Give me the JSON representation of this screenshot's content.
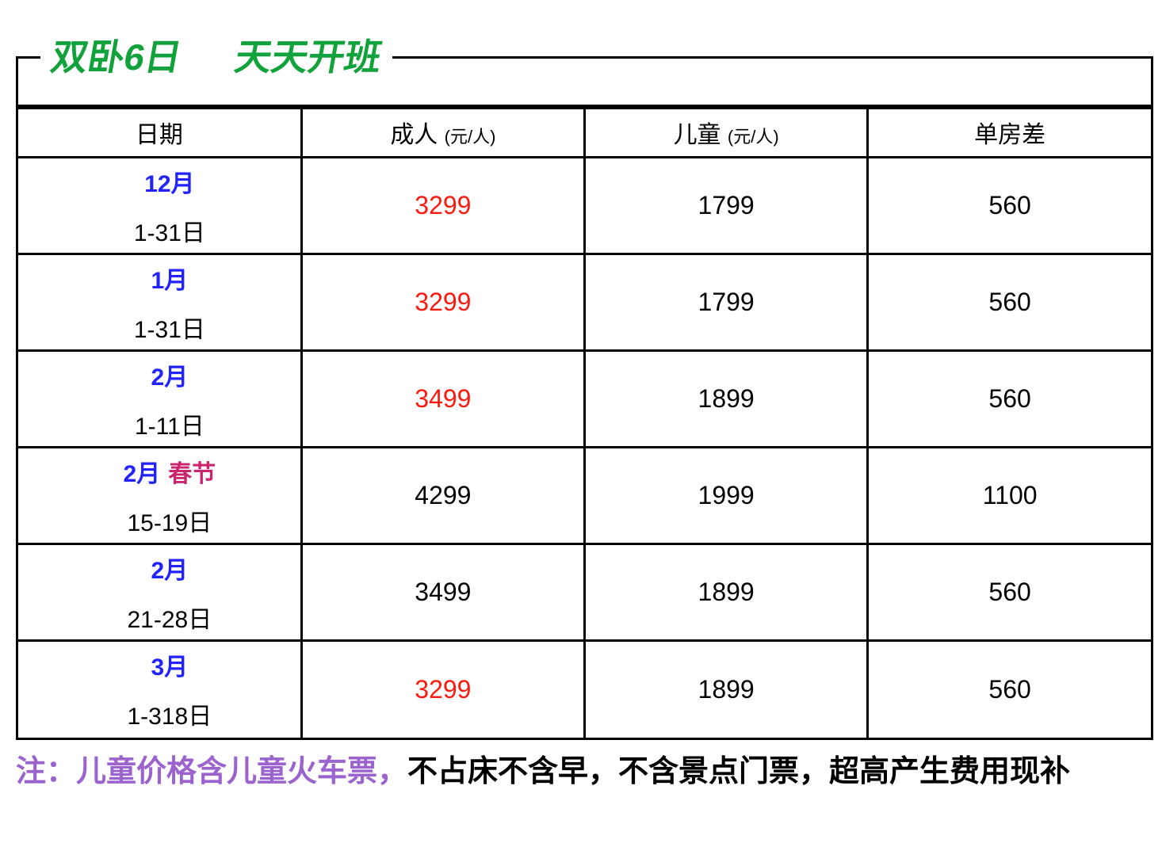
{
  "title": {
    "part1": "双卧6日",
    "part2": "天天开班"
  },
  "table": {
    "headers": [
      {
        "label": "日期",
        "unit": ""
      },
      {
        "label": "成人",
        "unit": "(元/人)"
      },
      {
        "label": "儿童",
        "unit": "(元/人)"
      },
      {
        "label": "单房差",
        "unit": ""
      }
    ],
    "rows": [
      {
        "month": "12月",
        "holiday": "",
        "dates": "1-31日",
        "adult": "3299",
        "adult_red": true,
        "child": "1799",
        "single": "560"
      },
      {
        "month": "1月",
        "holiday": "",
        "dates": "1-31日",
        "adult": "3299",
        "adult_red": true,
        "child": "1799",
        "single": "560"
      },
      {
        "month": "2月",
        "holiday": "",
        "dates": "1-11日",
        "adult": "3499",
        "adult_red": true,
        "child": "1899",
        "single": "560"
      },
      {
        "month": "2月",
        "holiday": "春节",
        "dates": "15-19日",
        "adult": "4299",
        "adult_red": false,
        "child": "1999",
        "single": "1100"
      },
      {
        "month": "2月",
        "holiday": "",
        "dates": "21-28日",
        "adult": "3499",
        "adult_red": false,
        "child": "1899",
        "single": "560"
      },
      {
        "month": "3月",
        "holiday": "",
        "dates": "1-318日",
        "adult": "3299",
        "adult_red": true,
        "child": "1899",
        "single": "560"
      }
    ]
  },
  "note": {
    "highlight": "注：儿童价格含儿童火车票，",
    "rest": "不占床不含早，不含景点门票，超高产生费用现补"
  },
  "colors": {
    "title_green": "#12A23C",
    "month_blue": "#2222FC",
    "price_red": "#FB1A10",
    "holiday_pink": "#C9266F",
    "note_purple": "#9B63CE"
  }
}
